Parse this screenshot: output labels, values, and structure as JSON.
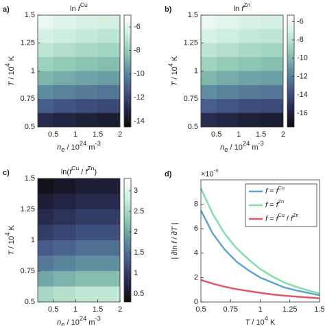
{
  "chart_data": [
    {
      "type": "heatmap",
      "panel": "a)",
      "title": [
        "ln ",
        "f",
        "Cu"
      ],
      "x_label": [
        "n",
        "e",
        " / 10",
        "24",
        " m",
        "-3"
      ],
      "y_label": [
        "T",
        " / 10",
        "4",
        " K"
      ],
      "x": [
        0.25,
        0.75,
        1.25,
        1.75
      ],
      "y": [
        0.5625,
        0.6875,
        0.8125,
        0.9375,
        1.0625,
        1.1875,
        1.3125,
        1.4375
      ],
      "z": [
        [
          -12.9,
          -13.2,
          -13.4,
          -13.6
        ],
        [
          -11.2,
          -11.5,
          -11.7,
          -11.9
        ],
        [
          -9.8,
          -10.1,
          -10.3,
          -10.5
        ],
        [
          -8.7,
          -9.0,
          -9.2,
          -9.4
        ],
        [
          -7.8,
          -8.1,
          -8.3,
          -8.5
        ],
        [
          -7.0,
          -7.3,
          -7.5,
          -7.7
        ],
        [
          -6.3,
          -6.6,
          -6.8,
          -7.0
        ],
        [
          -5.7,
          -6.0,
          -6.2,
          -6.4
        ]
      ],
      "xlim": [
        0.15,
        2
      ],
      "xticks": [
        0.5,
        1,
        1.5,
        2
      ],
      "ylim": [
        0.5,
        1.5
      ],
      "yticks": [
        0.5,
        0.75,
        1,
        1.25,
        1.5
      ],
      "zlim": [
        -14.5,
        -5
      ],
      "zticks": [
        -14,
        -12,
        -10,
        -8,
        -6
      ],
      "colormap": [
        "#0b0b0c",
        "#262a4e",
        "#45598a",
        "#5f8fa0",
        "#8fcab3",
        "#cdeedd",
        "#ffffff"
      ]
    },
    {
      "type": "heatmap",
      "panel": "b)",
      "title": [
        "ln ",
        "f",
        "Zn"
      ],
      "x_label": [
        "n",
        "e",
        " / 10",
        "24",
        " m",
        "-3"
      ],
      "y_label": [
        "T",
        " / 10",
        "4",
        " K"
      ],
      "x": [
        0.25,
        0.75,
        1.25,
        1.75
      ],
      "y": [
        0.5625,
        0.6875,
        0.8125,
        0.9375,
        1.0625,
        1.1875,
        1.3125,
        1.4375
      ],
      "z": [
        [
          -15.4,
          -15.8,
          -16.1,
          -16.3
        ],
        [
          -13.2,
          -13.6,
          -13.9,
          -14.1
        ],
        [
          -11.4,
          -11.8,
          -12.1,
          -12.3
        ],
        [
          -10.0,
          -10.4,
          -10.7,
          -10.9
        ],
        [
          -8.8,
          -9.2,
          -9.5,
          -9.7
        ],
        [
          -7.8,
          -8.2,
          -8.5,
          -8.7
        ],
        [
          -6.9,
          -7.3,
          -7.6,
          -7.8
        ],
        [
          -6.1,
          -6.5,
          -6.8,
          -7.0
        ]
      ],
      "xlim": [
        0.15,
        2
      ],
      "xticks": [
        0.5,
        1,
        1.5,
        2
      ],
      "ylim": [
        0.5,
        1.5
      ],
      "yticks": [
        0.5,
        0.75,
        1,
        1.25,
        1.5
      ],
      "zlim": [
        -17.5,
        -5.3
      ],
      "zticks": [
        -16,
        -14,
        -12,
        -10,
        -8,
        -6
      ],
      "colormap": [
        "#0b0b0c",
        "#262a4e",
        "#45598a",
        "#5f8fa0",
        "#8fcab3",
        "#cdeedd",
        "#ffffff"
      ]
    },
    {
      "type": "heatmap",
      "panel": "c)",
      "title": [
        "ln(",
        "f",
        "Cu",
        " / ",
        "f",
        "Zn",
        ")"
      ],
      "x_label": [
        "n",
        "e",
        " / 10",
        "24",
        " m",
        "-3"
      ],
      "y_label": [
        "T",
        " / 10",
        "4",
        " K"
      ],
      "x": [
        0.25,
        0.75,
        1.25,
        1.75
      ],
      "y": [
        0.5625,
        0.6875,
        0.8125,
        0.9375,
        1.0625,
        1.1875,
        1.3125,
        1.4375
      ],
      "z": [
        [
          2.5,
          2.6,
          2.7,
          2.7
        ],
        [
          2.0,
          2.1,
          2.2,
          2.2
        ],
        [
          1.6,
          1.7,
          1.8,
          1.8
        ],
        [
          1.3,
          1.4,
          1.5,
          1.5
        ],
        [
          1.0,
          1.1,
          1.2,
          1.2
        ],
        [
          0.8,
          0.9,
          1.0,
          1.0
        ],
        [
          0.6,
          0.7,
          0.8,
          0.8
        ],
        [
          0.4,
          0.5,
          0.6,
          0.6
        ]
      ],
      "xlim": [
        0.15,
        2
      ],
      "xticks": [
        0.5,
        1,
        1.5,
        2
      ],
      "ylim": [
        0.5,
        1.5
      ],
      "yticks": [
        0.5,
        0.75,
        1,
        1.25,
        1.5
      ],
      "zlim": [
        0.3,
        3.3
      ],
      "zticks": [
        0.5,
        1,
        1.5,
        2,
        2.5,
        3
      ],
      "colormap": [
        "#0b0b0c",
        "#262a4e",
        "#45598a",
        "#5f8fa0",
        "#8fcab3",
        "#cdeedd",
        "#ffffff"
      ]
    },
    {
      "type": "line",
      "panel": "d)",
      "scale_label": [
        "×10",
        "-3"
      ],
      "x_label": [
        "T",
        " / 10",
        "4",
        " K"
      ],
      "y_label": [
        "| ∂ln ",
        "f",
        " / ∂",
        "T",
        " |"
      ],
      "x": [
        0.5,
        0.6,
        0.7,
        0.8,
        0.9,
        1.0,
        1.1,
        1.2,
        1.3,
        1.4,
        1.5
      ],
      "series": [
        {
          "name": [
            "f",
            " = ",
            "f",
            "Cu"
          ],
          "color": "#5fa3d3",
          "values": [
            7.5,
            5.6,
            4.3,
            3.3,
            2.6,
            2.0,
            1.6,
            1.2,
            0.95,
            0.75,
            0.55
          ]
        },
        {
          "name": [
            "f",
            " = ",
            "f",
            "Zn"
          ],
          "color": "#7ee0a8",
          "values": [
            9.3,
            7.2,
            5.6,
            4.4,
            3.5,
            2.7,
            2.1,
            1.6,
            1.25,
            0.95,
            0.7
          ]
        },
        {
          "name": [
            "f",
            " = ",
            "f",
            "Cu",
            " / ",
            "f",
            "Zn"
          ],
          "color": "#e0566a",
          "values": [
            1.8,
            1.5,
            1.25,
            1.05,
            0.9,
            0.75,
            0.62,
            0.52,
            0.44,
            0.37,
            0.3
          ]
        }
      ],
      "xlim": [
        0.5,
        1.5
      ],
      "xticks": [
        0.5,
        0.75,
        1,
        1.25,
        1.5
      ],
      "ylim": [
        0,
        10
      ],
      "yticks": [
        0,
        2,
        4,
        6,
        8
      ],
      "legend": "top-right"
    }
  ]
}
